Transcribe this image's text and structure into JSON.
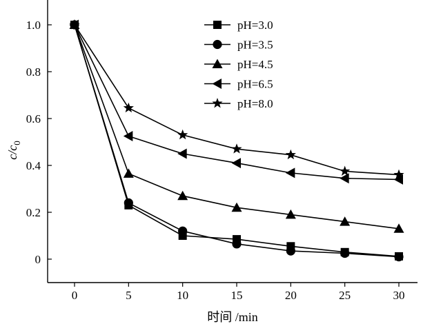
{
  "chart_data": {
    "type": "line",
    "title": "",
    "xlabel": "时间 /min",
    "ylabel": "c/c",
    "ylabel_subscript": "0",
    "x": [
      0,
      5,
      10,
      15,
      20,
      25,
      30
    ],
    "xticks": [
      "0",
      "5",
      "10",
      "15",
      "20",
      "25",
      "30"
    ],
    "yticks": [
      "0",
      "0.2",
      "0.4",
      "0.6",
      "0.8",
      "1.0"
    ],
    "xlim": [
      -2.5,
      31.5
    ],
    "ylim": [
      -0.1,
      1.1
    ],
    "legend_position": "top-center",
    "series": [
      {
        "name": "pH=3.0",
        "marker": "square",
        "values": [
          1.0,
          0.23,
          0.1,
          0.085,
          0.055,
          0.03,
          0.012
        ]
      },
      {
        "name": "pH=3.5",
        "marker": "circle",
        "values": [
          1.0,
          0.24,
          0.12,
          0.065,
          0.035,
          0.025,
          0.01
        ]
      },
      {
        "name": "pH=4.5",
        "marker": "triangle-up",
        "values": [
          1.0,
          0.365,
          0.27,
          0.22,
          0.19,
          0.16,
          0.13
        ]
      },
      {
        "name": "pH=6.5",
        "marker": "triangle-left",
        "values": [
          1.0,
          0.525,
          0.45,
          0.41,
          0.368,
          0.345,
          0.34
        ]
      },
      {
        "name": "pH=8.0",
        "marker": "star",
        "values": [
          1.0,
          0.645,
          0.53,
          0.47,
          0.445,
          0.375,
          0.36
        ]
      }
    ]
  }
}
